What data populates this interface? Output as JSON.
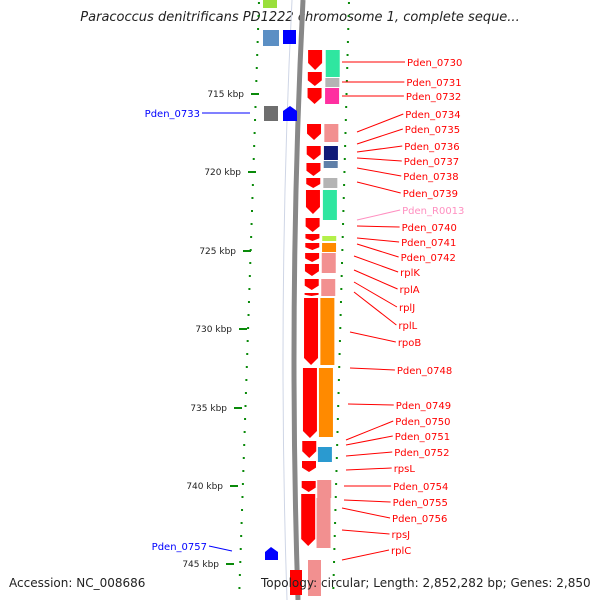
{
  "title": "Paracoccus denitrificans PD1222 chromosome 1, complete seque...",
  "footer": {
    "accession": "Accession: NC_008686",
    "summary": "Topology: circular; Length: 2,852,282 bp; Genes: 2,850"
  },
  "kbp_labels": [
    "715 kbp",
    "720 kbp",
    "725 kbp",
    "730 kbp",
    "735 kbp",
    "740 kbp",
    "745 kbp"
  ],
  "right_genes": [
    "Pden_0730",
    "Pden_0731",
    "Pden_0732",
    "Pden_0734",
    "Pden_0735",
    "Pden_0736",
    "Pden_0737",
    "Pden_0738",
    "Pden_0739",
    "Pden_R0013",
    "Pden_0740",
    "Pden_0741",
    "Pden_0742",
    "rplK",
    "rplA",
    "rplJ",
    "rplL",
    "rpoB",
    "Pden_0748",
    "Pden_0749",
    "Pden_0750",
    "Pden_0751",
    "Pden_0752",
    "rpsL",
    "Pden_0754",
    "Pden_0755",
    "Pden_0756",
    "rpsJ",
    "rplC"
  ],
  "left_genes": [
    "Pden_0733",
    "Pden_0757"
  ],
  "colors": {
    "forward_gene": "#ff0000",
    "reverse_gene": "#0000ff",
    "rna_label": "#ff8fc0",
    "tick": "#0a8a0a",
    "backbone": "#888888"
  }
}
